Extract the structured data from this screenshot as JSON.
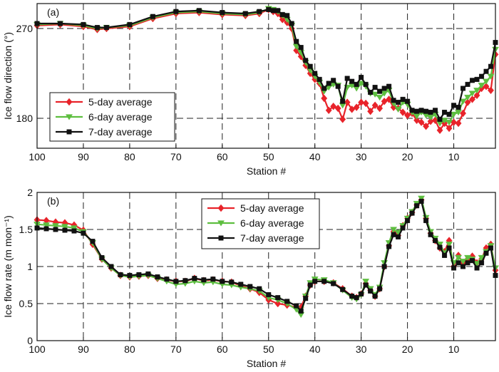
{
  "chart_data": [
    {
      "panel_label": "(a)",
      "type": "line",
      "xlabel": "Station #",
      "ylabel": "Ice flow direction (°)",
      "xlim": [
        100,
        1
      ],
      "xticks": [
        100,
        90,
        80,
        70,
        60,
        50,
        40,
        30,
        20,
        10
      ],
      "xtick_labels": [
        "100",
        "90",
        "80",
        "70",
        "60",
        "50",
        "40",
        "30",
        "20",
        "10"
      ],
      "ylim": [
        150,
        295
      ],
      "yticks": [
        180,
        270
      ],
      "ytick_labels": [
        "180",
        "270"
      ],
      "grid": true,
      "legend_position": "lower-left",
      "series": [
        {
          "name": "5-day average",
          "color": "#e8232a",
          "marker": "diamond",
          "x": [
            100,
            95,
            90,
            87,
            85,
            80,
            75,
            70,
            65,
            60,
            55,
            52,
            50,
            49,
            48,
            47,
            46,
            45,
            44,
            43,
            42,
            41,
            40,
            39,
            38,
            37,
            36,
            35,
            34,
            33,
            32,
            31,
            30,
            29,
            28,
            27,
            26,
            25,
            24,
            23,
            22,
            21,
            20,
            19,
            18,
            17,
            16,
            15,
            14,
            13,
            12,
            11,
            10,
            9,
            8,
            7,
            6,
            5,
            4,
            3,
            2,
            1
          ],
          "y": [
            273,
            274,
            272,
            269,
            270,
            272,
            280,
            285,
            286,
            284,
            283,
            285,
            289,
            287,
            285,
            279,
            276,
            270,
            248,
            242,
            233,
            225,
            219,
            215,
            200,
            188,
            192,
            190,
            179,
            196,
            189,
            191,
            196,
            195,
            187,
            193,
            190,
            197,
            199,
            191,
            190,
            186,
            183,
            185,
            178,
            176,
            172,
            177,
            178,
            168,
            175,
            170,
            176,
            175,
            185,
            196,
            199,
            203,
            210,
            212,
            208,
            244
          ]
        },
        {
          "name": "6-day average",
          "color": "#5dbe3f",
          "marker": "triangle-down",
          "x": [
            100,
            95,
            90,
            87,
            85,
            80,
            75,
            70,
            65,
            60,
            55,
            52,
            50,
            49,
            48,
            47,
            46,
            45,
            44,
            43,
            42,
            41,
            40,
            39,
            38,
            37,
            36,
            35,
            34,
            33,
            32,
            31,
            30,
            29,
            28,
            27,
            26,
            25,
            24,
            23,
            22,
            21,
            20,
            19,
            18,
            17,
            16,
            15,
            14,
            13,
            12,
            11,
            10,
            9,
            8,
            7,
            6,
            5,
            4,
            3,
            2,
            1
          ],
          "y": [
            274,
            275,
            273,
            270,
            271,
            273,
            281,
            286,
            287,
            285,
            284,
            286,
            290,
            289,
            287,
            283,
            279,
            273,
            252,
            246,
            236,
            228,
            222,
            216,
            207,
            211,
            214,
            213,
            193,
            211,
            213,
            210,
            215,
            212,
            205,
            204,
            201,
            205,
            208,
            195,
            189,
            196,
            194,
            186,
            182,
            186,
            183,
            181,
            184,
            175,
            178,
            176,
            184,
            186,
            197,
            201,
            205,
            208,
            213,
            217,
            222,
            249
          ]
        },
        {
          "name": "7-day average",
          "color": "#111111",
          "marker": "square",
          "x": [
            100,
            95,
            90,
            87,
            85,
            80,
            75,
            70,
            65,
            60,
            55,
            52,
            50,
            49,
            48,
            47,
            46,
            45,
            44,
            43,
            42,
            41,
            40,
            39,
            38,
            37,
            36,
            35,
            34,
            33,
            32,
            31,
            30,
            29,
            28,
            27,
            26,
            25,
            24,
            23,
            22,
            21,
            20,
            19,
            18,
            17,
            16,
            15,
            14,
            13,
            12,
            11,
            10,
            9,
            8,
            7,
            6,
            5,
            4,
            3,
            2,
            1
          ],
          "y": [
            275,
            275,
            274,
            271,
            271,
            274,
            282,
            287,
            288,
            286,
            285,
            287,
            289,
            288,
            288,
            284,
            283,
            275,
            257,
            251,
            238,
            232,
            225,
            219,
            210,
            215,
            218,
            212,
            197,
            220,
            217,
            214,
            221,
            214,
            206,
            211,
            207,
            210,
            212,
            198,
            196,
            199,
            197,
            188,
            187,
            188,
            187,
            186,
            188,
            179,
            186,
            184,
            193,
            191,
            210,
            214,
            218,
            219,
            222,
            227,
            232,
            256
          ]
        }
      ]
    },
    {
      "panel_label": "(b)",
      "type": "line",
      "xlabel": "Station #",
      "ylabel": "Ice flow rate (m mon⁻¹)",
      "xlim": [
        100,
        1
      ],
      "xticks": [
        100,
        90,
        80,
        70,
        60,
        50,
        40,
        30,
        20,
        10
      ],
      "xtick_labels": [
        "100",
        "90",
        "80",
        "70",
        "60",
        "50",
        "40",
        "30",
        "20",
        "10"
      ],
      "ylim": [
        0,
        2
      ],
      "yticks": [
        0,
        0.5,
        1,
        1.5,
        2
      ],
      "ytick_labels": [
        "0",
        "0.5",
        "1",
        "1.5",
        "2"
      ],
      "grid": true,
      "legend_position": "top-center",
      "series": [
        {
          "name": "5-day average",
          "color": "#e8232a",
          "marker": "diamond",
          "x": [
            100,
            98,
            96,
            94,
            92,
            90,
            88,
            86,
            84,
            82,
            80,
            78,
            76,
            74,
            72,
            70,
            68,
            66,
            64,
            62,
            60,
            58,
            56,
            54,
            52,
            50,
            48,
            46,
            44,
            43,
            42,
            41,
            40,
            38,
            36,
            34,
            32,
            31,
            30,
            29,
            28,
            27,
            26,
            25,
            24,
            23,
            22,
            21,
            20,
            19,
            18,
            17,
            16,
            15,
            14,
            13,
            12,
            11,
            10,
            9,
            8,
            7,
            6,
            5,
            4,
            3,
            2,
            1
          ],
          "y": [
            1.63,
            1.62,
            1.6,
            1.59,
            1.56,
            1.49,
            1.3,
            1.1,
            0.98,
            0.88,
            0.86,
            0.87,
            0.88,
            0.84,
            0.82,
            0.8,
            0.8,
            0.84,
            0.81,
            0.82,
            0.8,
            0.79,
            0.74,
            0.7,
            0.65,
            0.55,
            0.5,
            0.48,
            0.45,
            0.45,
            0.6,
            0.75,
            0.8,
            0.8,
            0.78,
            0.7,
            0.6,
            0.58,
            0.63,
            0.77,
            0.68,
            0.6,
            0.7,
            1.0,
            1.28,
            1.47,
            1.42,
            1.55,
            1.65,
            1.73,
            1.83,
            1.9,
            1.65,
            1.45,
            1.35,
            1.25,
            1.2,
            1.35,
            1.0,
            1.15,
            1.05,
            1.1,
            1.14,
            1.05,
            1.1,
            1.25,
            1.3,
            0.95
          ]
        },
        {
          "name": "6-day average",
          "color": "#5dbe3f",
          "marker": "triangle-down",
          "x": [
            100,
            98,
            96,
            94,
            92,
            90,
            88,
            86,
            84,
            82,
            80,
            78,
            76,
            74,
            72,
            70,
            68,
            66,
            64,
            62,
            60,
            58,
            56,
            54,
            52,
            50,
            48,
            46,
            44,
            43,
            42,
            41,
            40,
            38,
            36,
            34,
            32,
            31,
            30,
            29,
            28,
            27,
            26,
            25,
            24,
            23,
            22,
            21,
            20,
            19,
            18,
            17,
            16,
            15,
            14,
            13,
            12,
            11,
            10,
            9,
            8,
            7,
            6,
            5,
            4,
            3,
            2,
            1
          ],
          "y": [
            1.57,
            1.56,
            1.55,
            1.54,
            1.52,
            1.47,
            1.32,
            1.1,
            0.98,
            0.88,
            0.86,
            0.87,
            0.88,
            0.84,
            0.8,
            0.76,
            0.77,
            0.8,
            0.78,
            0.79,
            0.76,
            0.75,
            0.72,
            0.7,
            0.67,
            0.58,
            0.55,
            0.5,
            0.42,
            0.35,
            0.6,
            0.78,
            0.83,
            0.82,
            0.78,
            0.68,
            0.58,
            0.56,
            0.62,
            0.8,
            0.7,
            0.62,
            0.72,
            1.05,
            1.32,
            1.5,
            1.46,
            1.55,
            1.65,
            1.74,
            1.85,
            1.92,
            1.66,
            1.47,
            1.38,
            1.3,
            1.18,
            1.3,
            1.05,
            1.12,
            1.07,
            1.12,
            1.1,
            1.04,
            1.12,
            1.2,
            1.28,
            0.98
          ]
        },
        {
          "name": "7-day average",
          "color": "#111111",
          "marker": "square",
          "x": [
            100,
            98,
            96,
            94,
            92,
            90,
            88,
            86,
            84,
            82,
            80,
            78,
            76,
            74,
            72,
            70,
            68,
            66,
            64,
            62,
            60,
            58,
            56,
            54,
            52,
            50,
            48,
            46,
            44,
            43,
            42,
            41,
            40,
            38,
            36,
            34,
            32,
            31,
            30,
            29,
            28,
            27,
            26,
            25,
            24,
            23,
            22,
            21,
            20,
            19,
            18,
            17,
            16,
            15,
            14,
            13,
            12,
            11,
            10,
            9,
            8,
            7,
            6,
            5,
            4,
            3,
            2,
            1
          ],
          "y": [
            1.52,
            1.51,
            1.5,
            1.49,
            1.48,
            1.45,
            1.34,
            1.12,
            1.0,
            0.89,
            0.88,
            0.89,
            0.9,
            0.86,
            0.83,
            0.8,
            0.81,
            0.84,
            0.82,
            0.83,
            0.8,
            0.79,
            0.76,
            0.73,
            0.7,
            0.62,
            0.58,
            0.53,
            0.47,
            0.4,
            0.57,
            0.75,
            0.8,
            0.8,
            0.77,
            0.69,
            0.6,
            0.58,
            0.63,
            0.75,
            0.67,
            0.6,
            0.7,
            1.0,
            1.27,
            1.43,
            1.4,
            1.52,
            1.62,
            1.72,
            1.82,
            1.88,
            1.62,
            1.43,
            1.35,
            1.26,
            1.15,
            1.25,
            0.98,
            1.05,
            1.0,
            1.05,
            1.08,
            0.98,
            1.05,
            1.18,
            1.25,
            0.88
          ]
        }
      ]
    }
  ]
}
